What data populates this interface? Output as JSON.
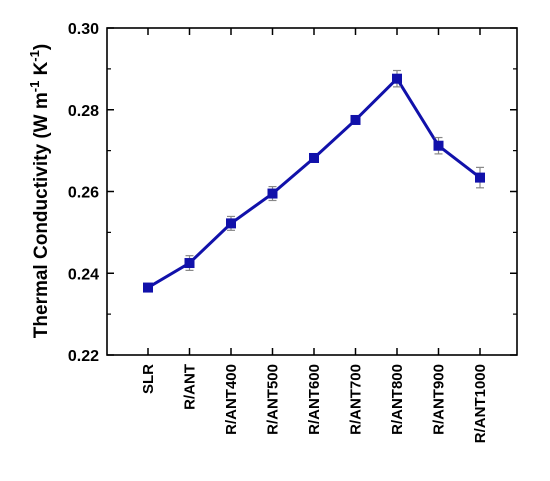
{
  "chart_data": {
    "type": "line",
    "title": "",
    "xlabel": "",
    "ylabel": "Thermal Conductivity (W m",
    "ylabel_sup1": "-1",
    "ylabel_mid": " K",
    "ylabel_sup2": "-1",
    "ylabel_end": ")",
    "categories": [
      "SLR",
      "R/ANT",
      "R/ANT400",
      "R/ANT500",
      "R/ANT600",
      "R/ANT700",
      "R/ANT800",
      "R/ANT900",
      "R/ANT1000"
    ],
    "series": [
      {
        "values": [
          0.2365,
          0.2425,
          0.2522,
          0.2595,
          0.2682,
          0.2775,
          0.2876,
          0.2712,
          0.2634
        ],
        "errors": [
          0.0007,
          0.0018,
          0.0017,
          0.0017,
          0.0007,
          0.0007,
          0.002,
          0.002,
          0.0025
        ],
        "color": "#1111aa",
        "marker": "square"
      }
    ],
    "ylim": [
      0.22,
      0.3
    ],
    "yticks": [
      "0.22",
      "0.24",
      "0.26",
      "0.28",
      "0.30"
    ],
    "ytick_values": [
      0.22,
      0.24,
      0.26,
      0.28,
      0.3
    ],
    "grid": false,
    "legend": "none"
  }
}
